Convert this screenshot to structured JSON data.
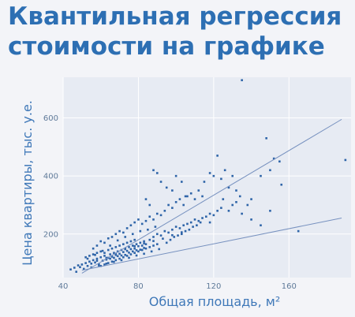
{
  "slide": {
    "title_lines": [
      "Квантильная регрессия",
      "стоимости на графике"
    ]
  },
  "colors": {
    "title": "#2d6fb3",
    "plot_bg": "#e7ebf3",
    "grid": "#ffffff",
    "points": "#2e64a8",
    "lines": "#7791bf"
  },
  "chart_data": {
    "type": "scatter",
    "title": "",
    "xlabel": "Общая площадь, м²",
    "ylabel": "Цена квартиры, тыс. у.е.",
    "xlim": [
      40,
      193
    ],
    "ylim": [
      50,
      740
    ],
    "xticks": [
      40,
      80,
      120,
      160
    ],
    "yticks": [
      200,
      400,
      600
    ],
    "grid": true,
    "points": [
      [
        44,
        78
      ],
      [
        46,
        84
      ],
      [
        47,
        70
      ],
      [
        48,
        92
      ],
      [
        49,
        86
      ],
      [
        50,
        95
      ],
      [
        51,
        80
      ],
      [
        52,
        100
      ],
      [
        53,
        90
      ],
      [
        54,
        105
      ],
      [
        55,
        98
      ],
      [
        56,
        110
      ],
      [
        57,
        102
      ],
      [
        58,
        115
      ],
      [
        59,
        96
      ],
      [
        60,
        120
      ],
      [
        61,
        108
      ],
      [
        62,
        125
      ],
      [
        63,
        112
      ],
      [
        64,
        118
      ],
      [
        65,
        130
      ],
      [
        66,
        122
      ],
      [
        67,
        135
      ],
      [
        68,
        128
      ],
      [
        69,
        140
      ],
      [
        70,
        132
      ],
      [
        71,
        145
      ],
      [
        72,
        138
      ],
      [
        73,
        150
      ],
      [
        74,
        142
      ],
      [
        75,
        155
      ],
      [
        76,
        148
      ],
      [
        77,
        160
      ],
      [
        78,
        150
      ],
      [
        79,
        165
      ],
      [
        80,
        158
      ],
      [
        81,
        170
      ],
      [
        82,
        160
      ],
      [
        83,
        175
      ],
      [
        84,
        165
      ],
      [
        56,
        150
      ],
      [
        58,
        160
      ],
      [
        60,
        175
      ],
      [
        62,
        170
      ],
      [
        64,
        185
      ],
      [
        66,
        190
      ],
      [
        68,
        200
      ],
      [
        70,
        210
      ],
      [
        72,
        205
      ],
      [
        74,
        220
      ],
      [
        76,
        230
      ],
      [
        78,
        240
      ],
      [
        80,
        250
      ],
      [
        82,
        235
      ],
      [
        84,
        245
      ],
      [
        86,
        260
      ],
      [
        88,
        250
      ],
      [
        90,
        270
      ],
      [
        92,
        265
      ],
      [
        94,
        280
      ],
      [
        96,
        300
      ],
      [
        98,
        290
      ],
      [
        100,
        310
      ],
      [
        102,
        320
      ],
      [
        104,
        300
      ],
      [
        106,
        330
      ],
      [
        108,
        340
      ],
      [
        110,
        320
      ],
      [
        112,
        350
      ],
      [
        114,
        330
      ],
      [
        86,
        180
      ],
      [
        88,
        190
      ],
      [
        90,
        200
      ],
      [
        92,
        195
      ],
      [
        94,
        210
      ],
      [
        96,
        205
      ],
      [
        98,
        215
      ],
      [
        100,
        225
      ],
      [
        102,
        220
      ],
      [
        104,
        230
      ],
      [
        106,
        235
      ],
      [
        108,
        240
      ],
      [
        110,
        250
      ],
      [
        112,
        245
      ],
      [
        114,
        255
      ],
      [
        116,
        260
      ],
      [
        118,
        270
      ],
      [
        120,
        265
      ],
      [
        122,
        280
      ],
      [
        124,
        290
      ],
      [
        88,
        420
      ],
      [
        90,
        410
      ],
      [
        92,
        380
      ],
      [
        84,
        320
      ],
      [
        86,
        300
      ],
      [
        95,
        360
      ],
      [
        98,
        350
      ],
      [
        100,
        400
      ],
      [
        103,
        380
      ],
      [
        105,
        330
      ],
      [
        115,
        380
      ],
      [
        118,
        410
      ],
      [
        120,
        400
      ],
      [
        122,
        470
      ],
      [
        124,
        390
      ],
      [
        126,
        420
      ],
      [
        128,
        360
      ],
      [
        130,
        400
      ],
      [
        132,
        350
      ],
      [
        134,
        330
      ],
      [
        128,
        280
      ],
      [
        130,
        300
      ],
      [
        132,
        310
      ],
      [
        135,
        270
      ],
      [
        138,
        300
      ],
      [
        140,
        320
      ],
      [
        145,
        400
      ],
      [
        148,
        530
      ],
      [
        150,
        420
      ],
      [
        152,
        460
      ],
      [
        155,
        450
      ],
      [
        156,
        370
      ],
      [
        165,
        210
      ],
      [
        135,
        730
      ],
      [
        190,
        455
      ],
      [
        140,
        250
      ],
      [
        145,
        230
      ],
      [
        150,
        280
      ],
      [
        118,
        240
      ],
      [
        125,
        320
      ],
      [
        60,
        140
      ],
      [
        62,
        135
      ],
      [
        64,
        145
      ],
      [
        66,
        150
      ],
      [
        68,
        155
      ],
      [
        70,
        160
      ],
      [
        72,
        165
      ],
      [
        74,
        170
      ],
      [
        76,
        175
      ],
      [
        78,
        180
      ],
      [
        52,
        120
      ],
      [
        54,
        125
      ],
      [
        56,
        130
      ],
      [
        58,
        135
      ],
      [
        60,
        90
      ],
      [
        62,
        95
      ],
      [
        64,
        100
      ],
      [
        66,
        105
      ],
      [
        68,
        110
      ],
      [
        70,
        115
      ],
      [
        72,
        120
      ],
      [
        74,
        125
      ],
      [
        76,
        130
      ],
      [
        78,
        135
      ],
      [
        80,
        140
      ],
      [
        82,
        145
      ],
      [
        84,
        150
      ],
      [
        86,
        155
      ],
      [
        88,
        160
      ],
      [
        90,
        165
      ],
      [
        53,
        115
      ],
      [
        57,
        128
      ],
      [
        61,
        142
      ],
      [
        65,
        160
      ],
      [
        69,
        178
      ],
      [
        73,
        190
      ],
      [
        77,
        200
      ],
      [
        81,
        210
      ],
      [
        85,
        215
      ],
      [
        89,
        225
      ],
      [
        55,
        85
      ],
      [
        59,
        92
      ],
      [
        63,
        98
      ],
      [
        67,
        104
      ],
      [
        71,
        110
      ],
      [
        75,
        118
      ],
      [
        79,
        126
      ],
      [
        83,
        132
      ],
      [
        87,
        140
      ],
      [
        91,
        148
      ],
      [
        95,
        170
      ],
      [
        97,
        180
      ],
      [
        99,
        190
      ],
      [
        101,
        195
      ],
      [
        103,
        200
      ],
      [
        105,
        210
      ],
      [
        107,
        215
      ],
      [
        109,
        225
      ],
      [
        111,
        230
      ],
      [
        113,
        240
      ],
      [
        58,
        108
      ],
      [
        63,
        118
      ],
      [
        68,
        132
      ],
      [
        73,
        148
      ],
      [
        78,
        158
      ],
      [
        83,
        168
      ],
      [
        88,
        176
      ],
      [
        93,
        184
      ],
      [
        98,
        196
      ],
      [
        103,
        206
      ],
      [
        65,
        115
      ],
      [
        67,
        118
      ],
      [
        69,
        124
      ],
      [
        71,
        126
      ],
      [
        73,
        128
      ],
      [
        75,
        136
      ],
      [
        77,
        140
      ],
      [
        79,
        144
      ],
      [
        81,
        146
      ],
      [
        83,
        152
      ]
    ],
    "regression_lines": [
      {
        "x": [
          50,
          188
        ],
        "y": [
          65,
          595
        ]
      },
      {
        "x": [
          50,
          188
        ],
        "y": [
          75,
          255
        ]
      }
    ]
  }
}
